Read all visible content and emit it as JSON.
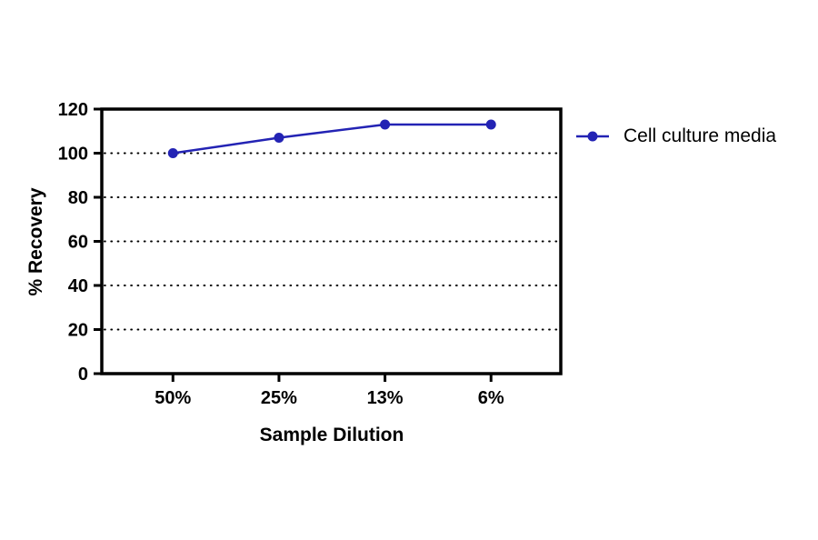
{
  "chart_data": {
    "type": "line",
    "title": "",
    "categories": [
      "50%",
      "25%",
      "13%",
      "6%"
    ],
    "series": [
      {
        "name": "Cell culture media",
        "values": [
          100,
          107,
          113,
          113
        ],
        "color": "#2323b4",
        "marker": "circle"
      }
    ],
    "xlabel": "Sample Dilution",
    "ylabel": "% Recovery",
    "ylim": [
      0,
      120
    ],
    "yticks": [
      0,
      20,
      40,
      60,
      80,
      100,
      120
    ],
    "gridline_values": [
      20,
      40,
      60,
      80,
      100
    ],
    "grid": "horizontal-dotted",
    "legend_position": "right",
    "axis_color": "#000000",
    "background": "#ffffff"
  }
}
